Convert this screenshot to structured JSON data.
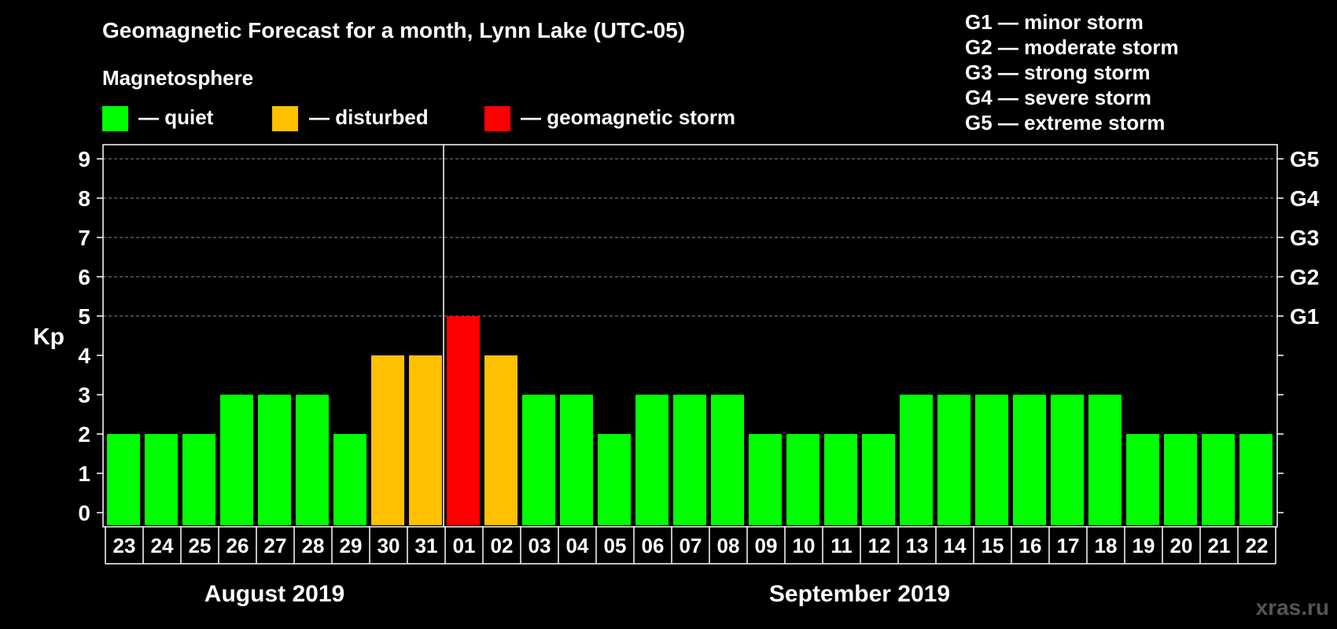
{
  "chart_data": {
    "type": "bar",
    "title": "Geomagnetic Forecast for a month, Lynn Lake (UTC-05)",
    "subtitle": "Magnetosphere",
    "ylabel": "Kp",
    "ylim": [
      0,
      9
    ],
    "yticks": [
      "0",
      "1",
      "2",
      "3",
      "4",
      "5",
      "6",
      "7",
      "8",
      "9"
    ],
    "right_ticks": [
      {
        "kp": 5,
        "label": "G1"
      },
      {
        "kp": 6,
        "label": "G2"
      },
      {
        "kp": 7,
        "label": "G3"
      },
      {
        "kp": 8,
        "label": "G4"
      },
      {
        "kp": 9,
        "label": "G5"
      }
    ],
    "categories": [
      "23",
      "24",
      "25",
      "26",
      "27",
      "28",
      "29",
      "30",
      "31",
      "01",
      "02",
      "03",
      "04",
      "05",
      "06",
      "07",
      "08",
      "09",
      "10",
      "11",
      "12",
      "13",
      "14",
      "15",
      "16",
      "17",
      "18",
      "19",
      "20",
      "21",
      "22"
    ],
    "values": [
      2,
      2,
      2,
      3,
      3,
      3,
      2,
      4,
      4,
      5,
      4,
      3,
      3,
      2,
      3,
      3,
      3,
      2,
      2,
      2,
      2,
      3,
      3,
      3,
      3,
      3,
      3,
      2,
      2,
      2,
      2
    ],
    "months": [
      {
        "label": "August 2019",
        "first_index": 0,
        "last_index": 8
      },
      {
        "label": "September 2019",
        "first_index": 9,
        "last_index": 30
      }
    ],
    "legend": [
      {
        "label": "— quiet",
        "color": "#00ff00"
      },
      {
        "label": "— disturbed",
        "color": "#ffc000"
      },
      {
        "label": "— geomagnetic storm",
        "color": "#ff0000"
      }
    ],
    "storm_scale": [
      "G1 — minor storm",
      "G2 — moderate storm",
      "G3 — strong storm",
      "G4 — severe storm",
      "G5 — extreme storm"
    ]
  },
  "colors": {
    "quiet": "#00ff00",
    "disturbed": "#ffc000",
    "storm": "#ff0000",
    "grid": "#888888",
    "frame": "#ffffff"
  },
  "watermark": "xras.ru"
}
